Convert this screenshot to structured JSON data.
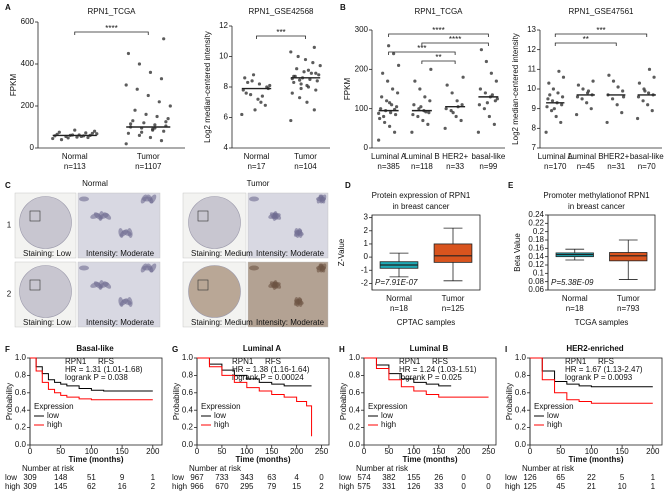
{
  "panel_labels": [
    "A",
    "B",
    "C",
    "D",
    "E",
    "F",
    "G",
    "H",
    "I"
  ],
  "ihc": {
    "columns": [
      "Normal",
      "Tumor"
    ],
    "rows": [
      "1",
      "2"
    ],
    "captions": [
      [
        [
          "Staining: Low",
          "Intensity: Moderate"
        ],
        [
          "Staining: Medium",
          "Intensity: Moderate"
        ]
      ],
      [
        [
          "Staining: Low",
          "Intensity: Moderate"
        ],
        [
          "Staining: Medium",
          "Intensity: Moderate"
        ]
      ]
    ]
  },
  "chart_data": [
    {
      "type": "dotplot",
      "title": "RPN1_TCGA",
      "ylabel": "FPKM",
      "ylim": [
        0,
        600
      ],
      "yticks": [
        0,
        200,
        400,
        600
      ],
      "groups": [
        {
          "name": "Normal",
          "n_label": "n=113",
          "median": 60,
          "values": [
            45,
            50,
            52,
            55,
            58,
            60,
            62,
            48,
            65,
            70,
            55,
            60,
            75,
            80,
            58,
            62,
            40,
            68,
            72,
            85
          ]
        },
        {
          "name": "Tumor",
          "n_label": "n=1107",
          "median": 100,
          "values": [
            20,
            35,
            50,
            60,
            70,
            80,
            90,
            95,
            100,
            105,
            110,
            120,
            130,
            140,
            150,
            160,
            180,
            200,
            220,
            250,
            280,
            300,
            330,
            360,
            400,
            450,
            520,
            85,
            75,
            115,
            125,
            95
          ]
        }
      ],
      "comparisons": [
        {
          "groups": [
            0,
            1
          ],
          "label": "****"
        }
      ]
    },
    {
      "type": "dotplot",
      "title": "RPN1_GSE42568",
      "ylabel": "Log2 median-centered intensity",
      "ylim": [
        4,
        12
      ],
      "yticks": [
        4,
        6,
        8,
        10,
        12
      ],
      "groups": [
        {
          "name": "Normal",
          "n_label": "n=17",
          "median": 7.9,
          "values": [
            6.2,
            6.8,
            7.2,
            7.5,
            7.8,
            8.0,
            8.2,
            8.4,
            8.6,
            7.9,
            7.0,
            8.8,
            7.6,
            8.1,
            7.4,
            6.5,
            8.3
          ]
        },
        {
          "name": "Tumor",
          "n_label": "n=104",
          "median": 8.6,
          "values": [
            5.8,
            6.5,
            7.0,
            7.3,
            7.6,
            7.8,
            8.0,
            8.2,
            8.3,
            8.4,
            8.5,
            8.6,
            8.7,
            8.8,
            8.9,
            9.0,
            9.2,
            9.4,
            9.6,
            9.8,
            10.0,
            10.3,
            10.6,
            8.1,
            8.45,
            8.55,
            8.9,
            9.1,
            7.9,
            8.7
          ]
        }
      ],
      "comparisons": [
        {
          "groups": [
            0,
            1
          ],
          "label": "***"
        }
      ]
    },
    {
      "type": "dotplot",
      "title": "RPN1_TCGA",
      "ylabel": "FPKM",
      "ylim": [
        0,
        300
      ],
      "yticks": [
        0,
        100,
        200,
        300
      ],
      "groups": [
        {
          "name": "Luminal A",
          "n_label": "n=385",
          "median": 95,
          "values": [
            20,
            40,
            55,
            65,
            75,
            85,
            90,
            95,
            100,
            105,
            110,
            120,
            130,
            140,
            150,
            170,
            190,
            210,
            240,
            260,
            80,
            88,
            98,
            115
          ]
        },
        {
          "name": "Luminal B",
          "n_label": "n=118",
          "median": 95,
          "values": [
            40,
            60,
            70,
            80,
            85,
            90,
            95,
            100,
            110,
            120,
            130,
            150,
            170,
            200,
            92,
            105
          ]
        },
        {
          "name": "HER2+",
          "n_label": "n=33",
          "median": 105,
          "values": [
            50,
            70,
            80,
            95,
            100,
            110,
            120,
            140,
            160,
            180,
            105,
            90
          ]
        },
        {
          "name": "basal-like",
          "n_label": "n=99",
          "median": 130,
          "values": [
            40,
            60,
            80,
            100,
            110,
            120,
            130,
            140,
            150,
            170,
            190,
            220,
            250,
            125,
            135,
            115
          ]
        }
      ],
      "comparisons": [
        {
          "groups": [
            0,
            3
          ],
          "label": "****"
        },
        {
          "groups": [
            1,
            3
          ],
          "label": "****"
        },
        {
          "groups": [
            0,
            2
          ],
          "label": "***"
        },
        {
          "groups": [
            1,
            2
          ],
          "label": "**"
        }
      ]
    },
    {
      "type": "dotplot",
      "title": "RPN1_GSE47561",
      "ylabel": "Log2 median-centered intensity",
      "ylim": [
        7,
        13
      ],
      "yticks": [
        7,
        8,
        9,
        10,
        11,
        12,
        13
      ],
      "groups": [
        {
          "name": "Luminal A",
          "n_label": "n=170",
          "median": 9.3,
          "values": [
            7.8,
            8.3,
            8.6,
            8.9,
            9.1,
            9.2,
            9.3,
            9.4,
            9.5,
            9.6,
            9.8,
            10.0,
            10.3,
            10.6,
            10.9,
            9.0,
            9.7
          ]
        },
        {
          "name": "Luminal B",
          "n_label": "n=45",
          "median": 9.7,
          "values": [
            8.7,
            9.0,
            9.3,
            9.5,
            9.6,
            9.7,
            9.8,
            10.0,
            10.2,
            10.4,
            9.9
          ]
        },
        {
          "name": "HER2+",
          "n_label": "n=31",
          "median": 9.7,
          "values": [
            8.3,
            8.8,
            9.2,
            9.5,
            9.7,
            9.9,
            10.1,
            10.4,
            10.7,
            9.6
          ]
        },
        {
          "name": "basal-like",
          "n_label": "n=70",
          "median": 9.7,
          "values": [
            8.5,
            8.9,
            9.2,
            9.4,
            9.6,
            9.7,
            9.8,
            10.0,
            10.3,
            10.6,
            11.0,
            9.9
          ]
        }
      ],
      "comparisons": [
        {
          "groups": [
            0,
            3
          ],
          "label": "***"
        },
        {
          "groups": [
            0,
            2
          ],
          "label": "**"
        }
      ]
    },
    {
      "type": "box",
      "title_lines": [
        "Protein expression of RPN1",
        "in breast cancer"
      ],
      "ylabel": "Z-Value",
      "xlabel": "CPTAC samples",
      "p_value": "P=7.91E-07",
      "ylim": [
        -2.5,
        3.2
      ],
      "yticks": [
        -2,
        -1,
        0,
        1,
        2,
        3
      ],
      "groups": [
        {
          "name": "Normal",
          "n_label": "n=18",
          "color": "#1fa9b5",
          "min": -1.5,
          "q1": -0.85,
          "median": -0.6,
          "q3": -0.35,
          "max": 0.3
        },
        {
          "name": "Tumor",
          "n_label": "n=125",
          "color": "#d9541e",
          "min": -1.8,
          "q1": -0.4,
          "median": 0.1,
          "q3": 1.0,
          "max": 2.2
        }
      ]
    },
    {
      "type": "box",
      "title_lines": [
        "Promoter methylationof RPN1",
        "in breast cancer"
      ],
      "ylabel": "Beta Value",
      "xlabel": "TCGA samples",
      "p_value": "P=5.38E-09",
      "ylim": [
        0.06,
        0.24
      ],
      "yticks": [
        0.06,
        0.08,
        0.1,
        0.12,
        0.14,
        0.16,
        0.18,
        0.2,
        0.22,
        0.24
      ],
      "groups": [
        {
          "name": "Normal",
          "n_label": "n=18",
          "color": "#1fa9b5",
          "min": 0.132,
          "q1": 0.14,
          "median": 0.145,
          "q3": 0.149,
          "max": 0.158
        },
        {
          "name": "Tumor",
          "n_label": "n=793",
          "color": "#d9541e",
          "min": 0.085,
          "q1": 0.13,
          "median": 0.142,
          "q3": 0.15,
          "max": 0.18
        }
      ]
    },
    {
      "type": "km",
      "title": "Basal-like",
      "gene": "RPN1",
      "endpoint": "RFS",
      "hr": "HR = 1.31 (1.01-1.68)",
      "logrank": "logrank P = 0.038",
      "xlabel": "Time (months)",
      "ylabel": "Probability",
      "legend_title": "Expression",
      "risk_title": "Number at risk",
      "xlim": [
        0,
        215
      ],
      "xticks": [
        0,
        50,
        100,
        150,
        200
      ],
      "ylim": [
        0,
        1
      ],
      "yticks": [
        {
          "value": 0,
          "label": "0.0"
        },
        0.2,
        0.4,
        0.6,
        0.8,
        {
          "value": 1,
          "label": "1.0"
        }
      ],
      "series": [
        {
          "name": "low",
          "color": "#000000",
          "x": [
            0,
            10,
            20,
            30,
            40,
            50,
            60,
            80,
            100,
            120,
            150,
            200
          ],
          "values": [
            1,
            0.9,
            0.82,
            0.75,
            0.72,
            0.7,
            0.68,
            0.65,
            0.63,
            0.62,
            0.62,
            0.62
          ],
          "at_risk": [
            309,
            148,
            51,
            9,
            1
          ]
        },
        {
          "name": "high",
          "color": "#ff0000",
          "x": [
            0,
            10,
            20,
            30,
            40,
            50,
            60,
            80,
            100,
            120,
            150,
            200
          ],
          "values": [
            1,
            0.85,
            0.72,
            0.64,
            0.6,
            0.57,
            0.55,
            0.53,
            0.52,
            0.52,
            0.52,
            0.52
          ],
          "at_risk": [
            309,
            145,
            62,
            16,
            2
          ]
        }
      ]
    },
    {
      "type": "km",
      "title": "Luminal A",
      "gene": "RPN1",
      "endpoint": "RFS",
      "hr": "HR = 1.38 (1.16-1.64)",
      "logrank": "logrank P = 0.00024",
      "xlabel": "Time (months)",
      "ylabel": "Probability",
      "legend_title": "Expression",
      "risk_title": "Number at risk",
      "xlim": [
        0,
        265
      ],
      "xticks": [
        0,
        50,
        100,
        150,
        200,
        250
      ],
      "ylim": [
        0,
        1
      ],
      "yticks": [
        {
          "value": 0,
          "label": "0.0"
        },
        0.2,
        0.4,
        0.6,
        0.8,
        {
          "value": 1,
          "label": "1.0"
        }
      ],
      "series": [
        {
          "name": "low",
          "color": "#000000",
          "x": [
            0,
            25,
            50,
            75,
            100,
            125,
            150,
            175,
            200,
            230
          ],
          "values": [
            1,
            0.93,
            0.86,
            0.8,
            0.76,
            0.72,
            0.7,
            0.68,
            0.68,
            0.68
          ],
          "at_risk": [
            967,
            733,
            343,
            63,
            4,
            0
          ]
        },
        {
          "name": "high",
          "color": "#ff0000",
          "x": [
            0,
            25,
            50,
            75,
            100,
            125,
            150,
            175,
            200,
            220,
            230
          ],
          "values": [
            1,
            0.9,
            0.8,
            0.72,
            0.66,
            0.62,
            0.58,
            0.55,
            0.5,
            0.45,
            0.1
          ],
          "at_risk": [
            966,
            670,
            295,
            79,
            15,
            2
          ]
        }
      ]
    },
    {
      "type": "km",
      "title": "Luminal B",
      "gene": "RPN1",
      "endpoint": "RFS",
      "hr": "HR = 1.24 (1.03-1.51)",
      "logrank": "logrank P = 0.025",
      "xlabel": "Time (months)",
      "ylabel": "Probability",
      "legend_title": "Expression",
      "risk_title": "Number at risk",
      "xlim": [
        0,
        265
      ],
      "xticks": [
        0,
        50,
        100,
        150,
        200,
        250
      ],
      "ylim": [
        0,
        1
      ],
      "yticks": [
        {
          "value": 0,
          "label": "0.0"
        },
        0.2,
        0.4,
        0.6,
        0.8,
        {
          "value": 1,
          "label": "1.0"
        }
      ],
      "series": [
        {
          "name": "low",
          "color": "#000000",
          "x": [
            0,
            25,
            50,
            75,
            100,
            125,
            150,
            175
          ],
          "values": [
            1,
            0.92,
            0.82,
            0.76,
            0.72,
            0.7,
            0.68,
            0.68
          ],
          "at_risk": [
            574,
            382,
            155,
            26,
            0,
            0
          ]
        },
        {
          "name": "high",
          "color": "#ff0000",
          "x": [
            0,
            25,
            50,
            75,
            100,
            125,
            150,
            175,
            250
          ],
          "values": [
            1,
            0.88,
            0.75,
            0.67,
            0.62,
            0.58,
            0.55,
            0.55,
            0.55
          ],
          "at_risk": [
            575,
            331,
            126,
            33,
            0,
            0
          ]
        }
      ]
    },
    {
      "type": "km",
      "title": "HER2-enriched",
      "gene": "RPN1",
      "endpoint": "RFS",
      "hr": "HR = 1.67 (1.13-2.47)",
      "logrank": "logrank P = 0.0093",
      "xlabel": "Time (months)",
      "ylabel": "Probability",
      "legend_title": "Expression",
      "risk_title": "Number at risk",
      "xlim": [
        0,
        215
      ],
      "xticks": [
        0,
        50,
        100,
        150,
        200
      ],
      "ylim": [
        0,
        1
      ],
      "yticks": [
        {
          "value": 0,
          "label": "0.0"
        },
        0.2,
        0.4,
        0.6,
        0.8,
        {
          "value": 1,
          "label": "1.0"
        }
      ],
      "series": [
        {
          "name": "low",
          "color": "#000000",
          "x": [
            0,
            20,
            40,
            60,
            80,
            100,
            150,
            200
          ],
          "values": [
            1,
            0.85,
            0.73,
            0.7,
            0.68,
            0.67,
            0.67,
            0.67
          ],
          "at_risk": [
            126,
            65,
            22,
            5,
            1
          ]
        },
        {
          "name": "high",
          "color": "#ff0000",
          "x": [
            0,
            20,
            40,
            60,
            80,
            100,
            150,
            200
          ],
          "values": [
            1,
            0.75,
            0.6,
            0.52,
            0.5,
            0.48,
            0.48,
            0.48
          ],
          "at_risk": [
            125,
            45,
            21,
            10,
            1
          ]
        }
      ]
    }
  ]
}
